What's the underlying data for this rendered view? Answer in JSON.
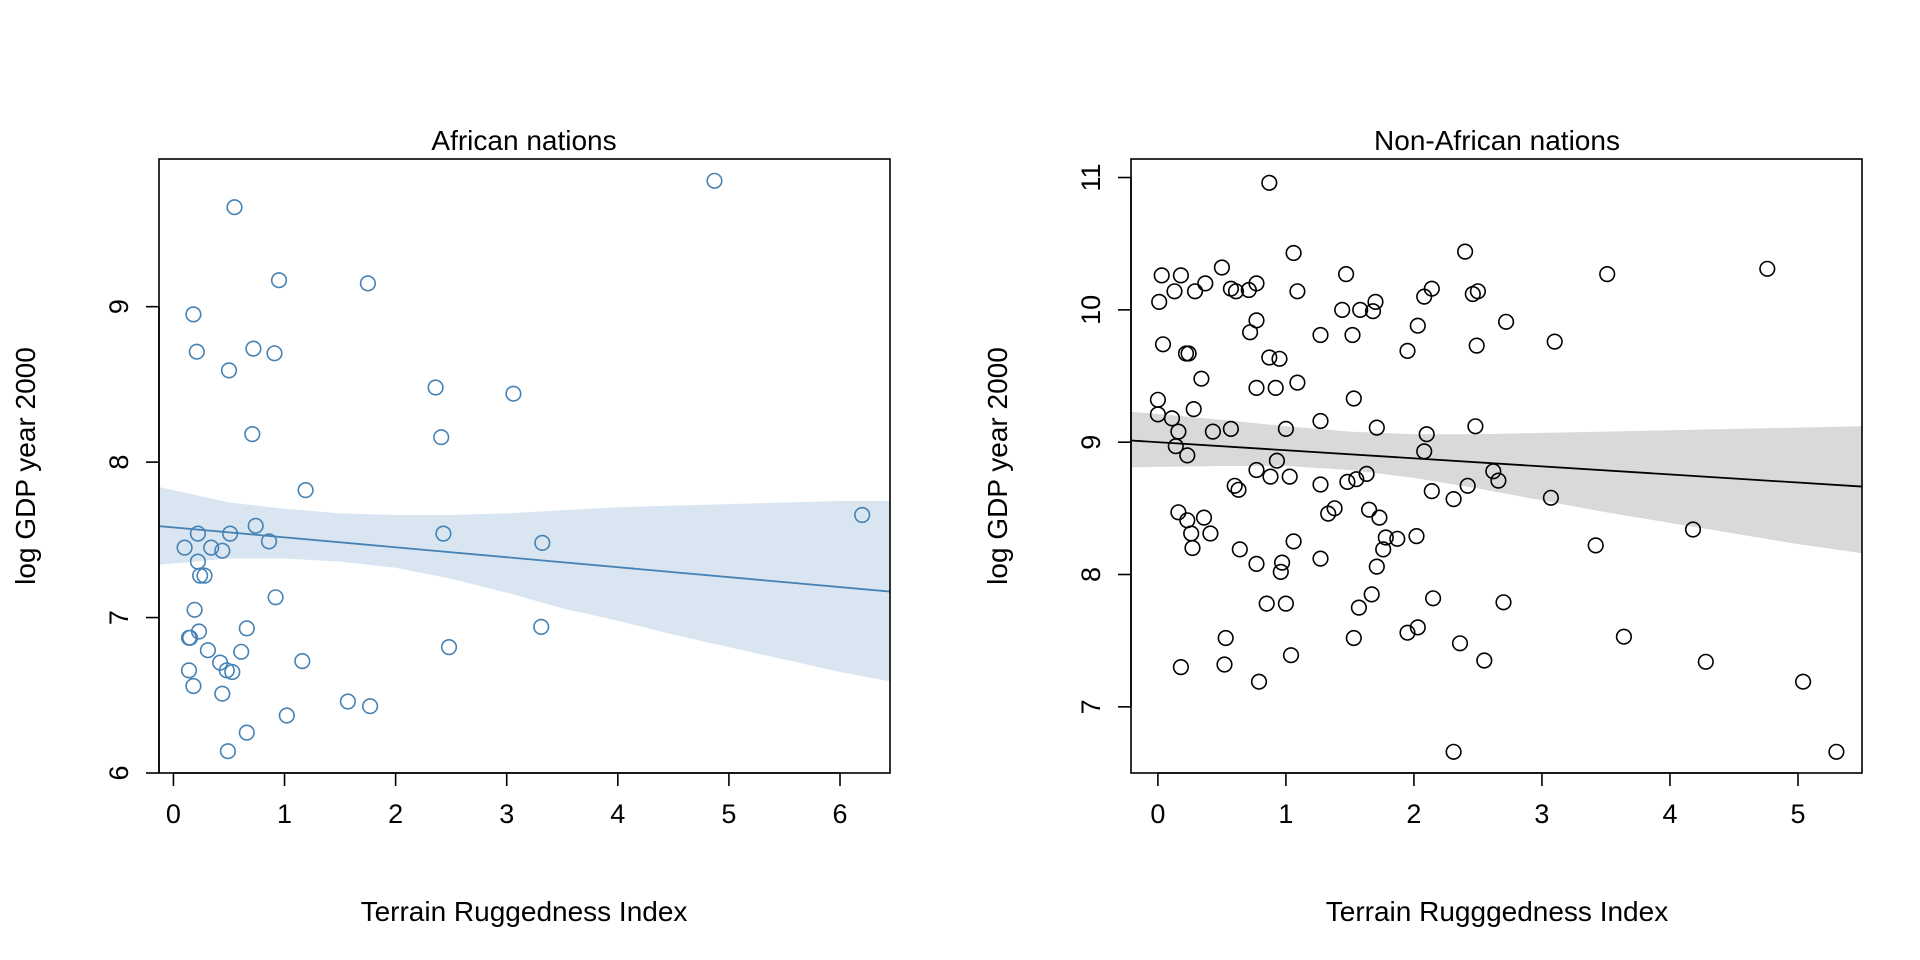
{
  "chart_data": [
    {
      "type": "scatter",
      "title": "African nations",
      "xlabel": "Terrain Ruggedness Index",
      "ylabel": "log GDP year 2000",
      "xlim": [
        -0.13,
        6.45
      ],
      "ylim": [
        6.0,
        9.95
      ],
      "xticks": [
        "0",
        "1",
        "2",
        "3",
        "4",
        "5",
        "6"
      ],
      "yticks": [
        "6",
        "7",
        "8",
        "9"
      ],
      "point_color": "#4682b4",
      "band_color": "#d9e5f0",
      "line_color": "#4682b4",
      "fit_line": {
        "intercept": 7.58,
        "slope": -0.064
      },
      "ci_band": {
        "x": [
          -0.13,
          0.5,
          1.0,
          1.5,
          2.0,
          2.5,
          3.0,
          3.5,
          4.0,
          4.5,
          5.0,
          5.5,
          6.0,
          6.45
        ],
        "lower": [
          7.34,
          7.38,
          7.38,
          7.36,
          7.32,
          7.25,
          7.16,
          7.06,
          6.98,
          6.89,
          6.81,
          6.73,
          6.65,
          6.59
        ],
        "upper": [
          7.84,
          7.74,
          7.7,
          7.67,
          7.66,
          7.66,
          7.67,
          7.69,
          7.71,
          7.72,
          7.73,
          7.74,
          7.75,
          7.75
        ]
      },
      "points": [
        {
          "x": 0.55,
          "y": 9.64
        },
        {
          "x": 4.87,
          "y": 9.81
        },
        {
          "x": 0.95,
          "y": 9.17
        },
        {
          "x": 1.75,
          "y": 9.15
        },
        {
          "x": 0.18,
          "y": 8.95
        },
        {
          "x": 0.21,
          "y": 8.71
        },
        {
          "x": 0.72,
          "y": 8.73
        },
        {
          "x": 0.91,
          "y": 8.7
        },
        {
          "x": 0.5,
          "y": 8.59
        },
        {
          "x": 2.36,
          "y": 8.48
        },
        {
          "x": 3.06,
          "y": 8.44
        },
        {
          "x": 0.71,
          "y": 8.18
        },
        {
          "x": 2.41,
          "y": 8.16
        },
        {
          "x": 1.19,
          "y": 7.82
        },
        {
          "x": 6.2,
          "y": 7.66
        },
        {
          "x": 0.74,
          "y": 7.59
        },
        {
          "x": 0.22,
          "y": 7.54
        },
        {
          "x": 0.51,
          "y": 7.54
        },
        {
          "x": 2.43,
          "y": 7.54
        },
        {
          "x": 0.1,
          "y": 7.45
        },
        {
          "x": 0.34,
          "y": 7.45
        },
        {
          "x": 0.44,
          "y": 7.43
        },
        {
          "x": 0.86,
          "y": 7.49
        },
        {
          "x": 3.32,
          "y": 7.48
        },
        {
          "x": 0.22,
          "y": 7.36
        },
        {
          "x": 0.24,
          "y": 7.27
        },
        {
          "x": 0.28,
          "y": 7.27
        },
        {
          "x": 0.92,
          "y": 7.13
        },
        {
          "x": 0.19,
          "y": 7.05
        },
        {
          "x": 3.31,
          "y": 6.94
        },
        {
          "x": 0.23,
          "y": 6.91
        },
        {
          "x": 0.66,
          "y": 6.93
        },
        {
          "x": 0.14,
          "y": 6.87
        },
        {
          "x": 0.15,
          "y": 6.87
        },
        {
          "x": 2.48,
          "y": 6.81
        },
        {
          "x": 0.31,
          "y": 6.79
        },
        {
          "x": 0.61,
          "y": 6.78
        },
        {
          "x": 0.42,
          "y": 6.71
        },
        {
          "x": 1.16,
          "y": 6.72
        },
        {
          "x": 0.14,
          "y": 6.66
        },
        {
          "x": 0.48,
          "y": 6.66
        },
        {
          "x": 0.53,
          "y": 6.65
        },
        {
          "x": 0.18,
          "y": 6.56
        },
        {
          "x": 0.44,
          "y": 6.51
        },
        {
          "x": 1.57,
          "y": 6.46
        },
        {
          "x": 1.77,
          "y": 6.43
        },
        {
          "x": 1.02,
          "y": 6.37
        },
        {
          "x": 0.66,
          "y": 6.26
        },
        {
          "x": 0.49,
          "y": 6.14
        }
      ]
    },
    {
      "type": "scatter",
      "title": "Non-African nations",
      "xlabel": "Terrain Rugggedness Index",
      "ylabel": "log GDP year 2000",
      "xlim": [
        -0.21,
        5.5
      ],
      "ylim": [
        6.5,
        11.14
      ],
      "xticks": [
        "0",
        "1",
        "2",
        "3",
        "4",
        "5"
      ],
      "yticks": [
        "7",
        "8",
        "9",
        "10",
        "11"
      ],
      "point_color": "#000000",
      "band_color": "#d9d9d9",
      "line_color": "#000000",
      "fit_line": {
        "intercept": 9.0,
        "slope": -0.061
      },
      "ci_band": {
        "x": [
          -0.21,
          0.5,
          1.0,
          1.5,
          2.0,
          2.5,
          3.0,
          3.5,
          4.0,
          4.5,
          5.0,
          5.5
        ],
        "lower": [
          8.81,
          8.82,
          8.82,
          8.79,
          8.73,
          8.65,
          8.56,
          8.47,
          8.39,
          8.31,
          8.23,
          8.16
        ],
        "upper": [
          9.23,
          9.17,
          9.12,
          9.08,
          9.06,
          9.06,
          9.07,
          9.08,
          9.09,
          9.1,
          9.11,
          9.12
        ]
      },
      "points": [
        {
          "x": 0.87,
          "y": 10.96
        },
        {
          "x": 1.06,
          "y": 10.43
        },
        {
          "x": 2.4,
          "y": 10.44
        },
        {
          "x": 4.76,
          "y": 10.31
        },
        {
          "x": 0.5,
          "y": 10.32
        },
        {
          "x": 0.03,
          "y": 10.26
        },
        {
          "x": 0.18,
          "y": 10.26
        },
        {
          "x": 1.47,
          "y": 10.27
        },
        {
          "x": 3.51,
          "y": 10.27
        },
        {
          "x": 0.37,
          "y": 10.2
        },
        {
          "x": 0.77,
          "y": 10.2
        },
        {
          "x": 0.13,
          "y": 10.14
        },
        {
          "x": 0.29,
          "y": 10.14
        },
        {
          "x": 0.57,
          "y": 10.16
        },
        {
          "x": 0.61,
          "y": 10.14
        },
        {
          "x": 0.71,
          "y": 10.15
        },
        {
          "x": 1.09,
          "y": 10.14
        },
        {
          "x": 2.14,
          "y": 10.16
        },
        {
          "x": 2.46,
          "y": 10.12
        },
        {
          "x": 2.5,
          "y": 10.14
        },
        {
          "x": 2.08,
          "y": 10.1
        },
        {
          "x": 0.01,
          "y": 10.06
        },
        {
          "x": 1.44,
          "y": 10.0
        },
        {
          "x": 1.58,
          "y": 10.0
        },
        {
          "x": 1.7,
          "y": 10.06
        },
        {
          "x": 1.68,
          "y": 9.99
        },
        {
          "x": 0.77,
          "y": 9.92
        },
        {
          "x": 2.72,
          "y": 9.91
        },
        {
          "x": 2.03,
          "y": 9.88
        },
        {
          "x": 0.72,
          "y": 9.83
        },
        {
          "x": 1.27,
          "y": 9.81
        },
        {
          "x": 1.52,
          "y": 9.81
        },
        {
          "x": 0.04,
          "y": 9.74
        },
        {
          "x": 2.49,
          "y": 9.73
        },
        {
          "x": 3.1,
          "y": 9.76
        },
        {
          "x": 1.95,
          "y": 9.69
        },
        {
          "x": 0.22,
          "y": 9.67
        },
        {
          "x": 0.24,
          "y": 9.67
        },
        {
          "x": 0.87,
          "y": 9.64
        },
        {
          "x": 0.95,
          "y": 9.63
        },
        {
          "x": 0.34,
          "y": 9.48
        },
        {
          "x": 1.09,
          "y": 9.45
        },
        {
          "x": 0.77,
          "y": 9.41
        },
        {
          "x": 0.92,
          "y": 9.41
        },
        {
          "x": 0.0,
          "y": 9.32
        },
        {
          "x": 1.53,
          "y": 9.33
        },
        {
          "x": 0.28,
          "y": 9.25
        },
        {
          "x": 0.0,
          "y": 9.21
        },
        {
          "x": 0.11,
          "y": 9.18
        },
        {
          "x": 1.27,
          "y": 9.16
        },
        {
          "x": 0.57,
          "y": 9.1
        },
        {
          "x": 0.16,
          "y": 9.08
        },
        {
          "x": 0.43,
          "y": 9.08
        },
        {
          "x": 1.0,
          "y": 9.1
        },
        {
          "x": 1.71,
          "y": 9.11
        },
        {
          "x": 2.48,
          "y": 9.12
        },
        {
          "x": 2.1,
          "y": 9.06
        },
        {
          "x": 0.14,
          "y": 8.97
        },
        {
          "x": 0.23,
          "y": 8.9
        },
        {
          "x": 2.08,
          "y": 8.93
        },
        {
          "x": 0.93,
          "y": 8.86
        },
        {
          "x": 0.77,
          "y": 8.79
        },
        {
          "x": 1.63,
          "y": 8.76
        },
        {
          "x": 1.03,
          "y": 8.74
        },
        {
          "x": 2.62,
          "y": 8.78
        },
        {
          "x": 0.88,
          "y": 8.74
        },
        {
          "x": 1.48,
          "y": 8.7
        },
        {
          "x": 1.55,
          "y": 8.72
        },
        {
          "x": 2.66,
          "y": 8.71
        },
        {
          "x": 0.6,
          "y": 8.67
        },
        {
          "x": 0.63,
          "y": 8.64
        },
        {
          "x": 1.27,
          "y": 8.68
        },
        {
          "x": 2.42,
          "y": 8.67
        },
        {
          "x": 2.14,
          "y": 8.63
        },
        {
          "x": 3.07,
          "y": 8.58
        },
        {
          "x": 2.31,
          "y": 8.57
        },
        {
          "x": 1.38,
          "y": 8.5
        },
        {
          "x": 1.33,
          "y": 8.46
        },
        {
          "x": 1.65,
          "y": 8.49
        },
        {
          "x": 1.73,
          "y": 8.43
        },
        {
          "x": 0.16,
          "y": 8.47
        },
        {
          "x": 0.36,
          "y": 8.43
        },
        {
          "x": 0.23,
          "y": 8.41
        },
        {
          "x": 4.18,
          "y": 8.34
        },
        {
          "x": 0.26,
          "y": 8.31
        },
        {
          "x": 0.41,
          "y": 8.31
        },
        {
          "x": 1.78,
          "y": 8.28
        },
        {
          "x": 1.87,
          "y": 8.27
        },
        {
          "x": 2.02,
          "y": 8.29
        },
        {
          "x": 1.06,
          "y": 8.25
        },
        {
          "x": 3.42,
          "y": 8.22
        },
        {
          "x": 0.27,
          "y": 8.2
        },
        {
          "x": 0.64,
          "y": 8.19
        },
        {
          "x": 1.76,
          "y": 8.19
        },
        {
          "x": 1.27,
          "y": 8.12
        },
        {
          "x": 0.97,
          "y": 8.09
        },
        {
          "x": 0.77,
          "y": 8.08
        },
        {
          "x": 0.96,
          "y": 8.02
        },
        {
          "x": 1.71,
          "y": 8.06
        },
        {
          "x": 1.67,
          "y": 7.85
        },
        {
          "x": 2.15,
          "y": 7.82
        },
        {
          "x": 0.85,
          "y": 7.78
        },
        {
          "x": 1.0,
          "y": 7.78
        },
        {
          "x": 1.57,
          "y": 7.75
        },
        {
          "x": 2.7,
          "y": 7.79
        },
        {
          "x": 2.03,
          "y": 7.6
        },
        {
          "x": 1.95,
          "y": 7.56
        },
        {
          "x": 0.53,
          "y": 7.52
        },
        {
          "x": 1.53,
          "y": 7.52
        },
        {
          "x": 3.64,
          "y": 7.53
        },
        {
          "x": 2.36,
          "y": 7.48
        },
        {
          "x": 1.04,
          "y": 7.39
        },
        {
          "x": 2.55,
          "y": 7.35
        },
        {
          "x": 4.28,
          "y": 7.34
        },
        {
          "x": 0.52,
          "y": 7.32
        },
        {
          "x": 0.18,
          "y": 7.3
        },
        {
          "x": 0.79,
          "y": 7.19
        },
        {
          "x": 5.04,
          "y": 7.19
        },
        {
          "x": 2.31,
          "y": 6.66
        },
        {
          "x": 5.3,
          "y": 6.66
        }
      ]
    }
  ]
}
